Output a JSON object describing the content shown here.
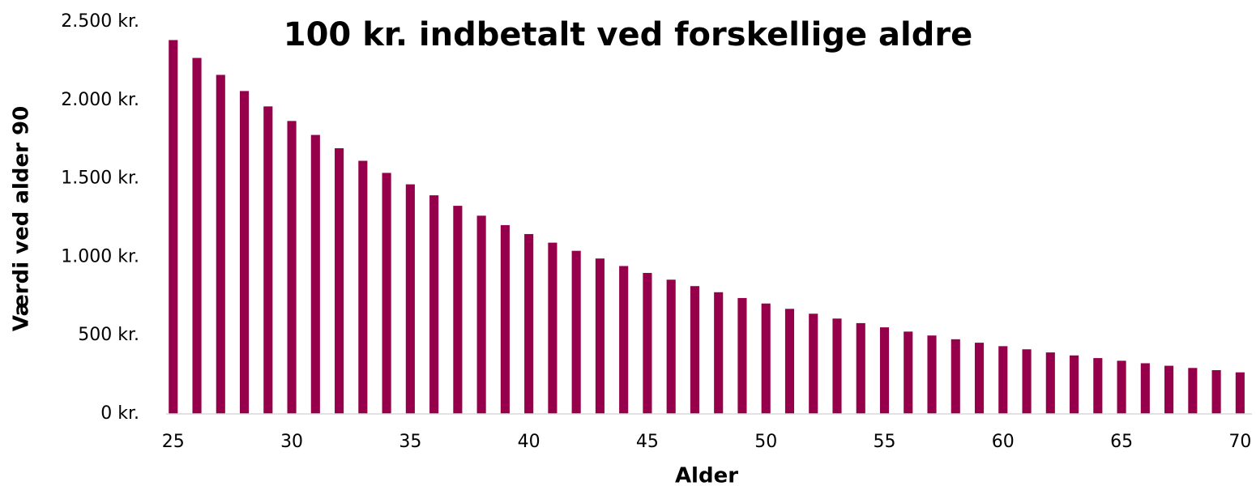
{
  "chart_data": {
    "type": "bar",
    "title": "100 kr. indbetalt ved forskellige aldre",
    "xlabel": "Alder",
    "ylabel": "Værdi ved alder 90",
    "x": [
      25,
      26,
      27,
      28,
      29,
      30,
      31,
      32,
      33,
      34,
      35,
      36,
      37,
      38,
      39,
      40,
      41,
      42,
      43,
      44,
      45,
      46,
      47,
      48,
      49,
      50,
      51,
      52,
      53,
      54,
      55,
      56,
      57,
      58,
      59,
      60,
      61,
      62,
      63,
      64,
      65,
      66,
      67,
      68,
      69,
      70
    ],
    "values": [
      2384,
      2270,
      2162,
      2059,
      1961,
      1868,
      1779,
      1694,
      1614,
      1537,
      1464,
      1394,
      1327,
      1264,
      1204,
      1147,
      1092,
      1040,
      991,
      943,
      899,
      856,
      815,
      776,
      739,
      704,
      670,
      639,
      608,
      579,
      552,
      525,
      500,
      476,
      454,
      432,
      412,
      392,
      373,
      356,
      339,
      323,
      307,
      293,
      279,
      265
    ],
    "color": "#96004b",
    "xlim": [
      24.7,
      70.5
    ],
    "xticks": [
      25,
      30,
      35,
      40,
      45,
      50,
      55,
      60,
      65,
      70
    ],
    "ylim": [
      0,
      2500
    ],
    "yticks": [
      {
        "value": 0,
        "label": "0 kr."
      },
      {
        "value": 500,
        "label": "500 kr."
      },
      {
        "value": 1000,
        "label": "1.000 kr."
      },
      {
        "value": 1500,
        "label": "1.500 kr."
      },
      {
        "value": 2000,
        "label": "2.000 kr."
      },
      {
        "value": 2500,
        "label": "2.500 kr."
      }
    ],
    "grid": false
  }
}
